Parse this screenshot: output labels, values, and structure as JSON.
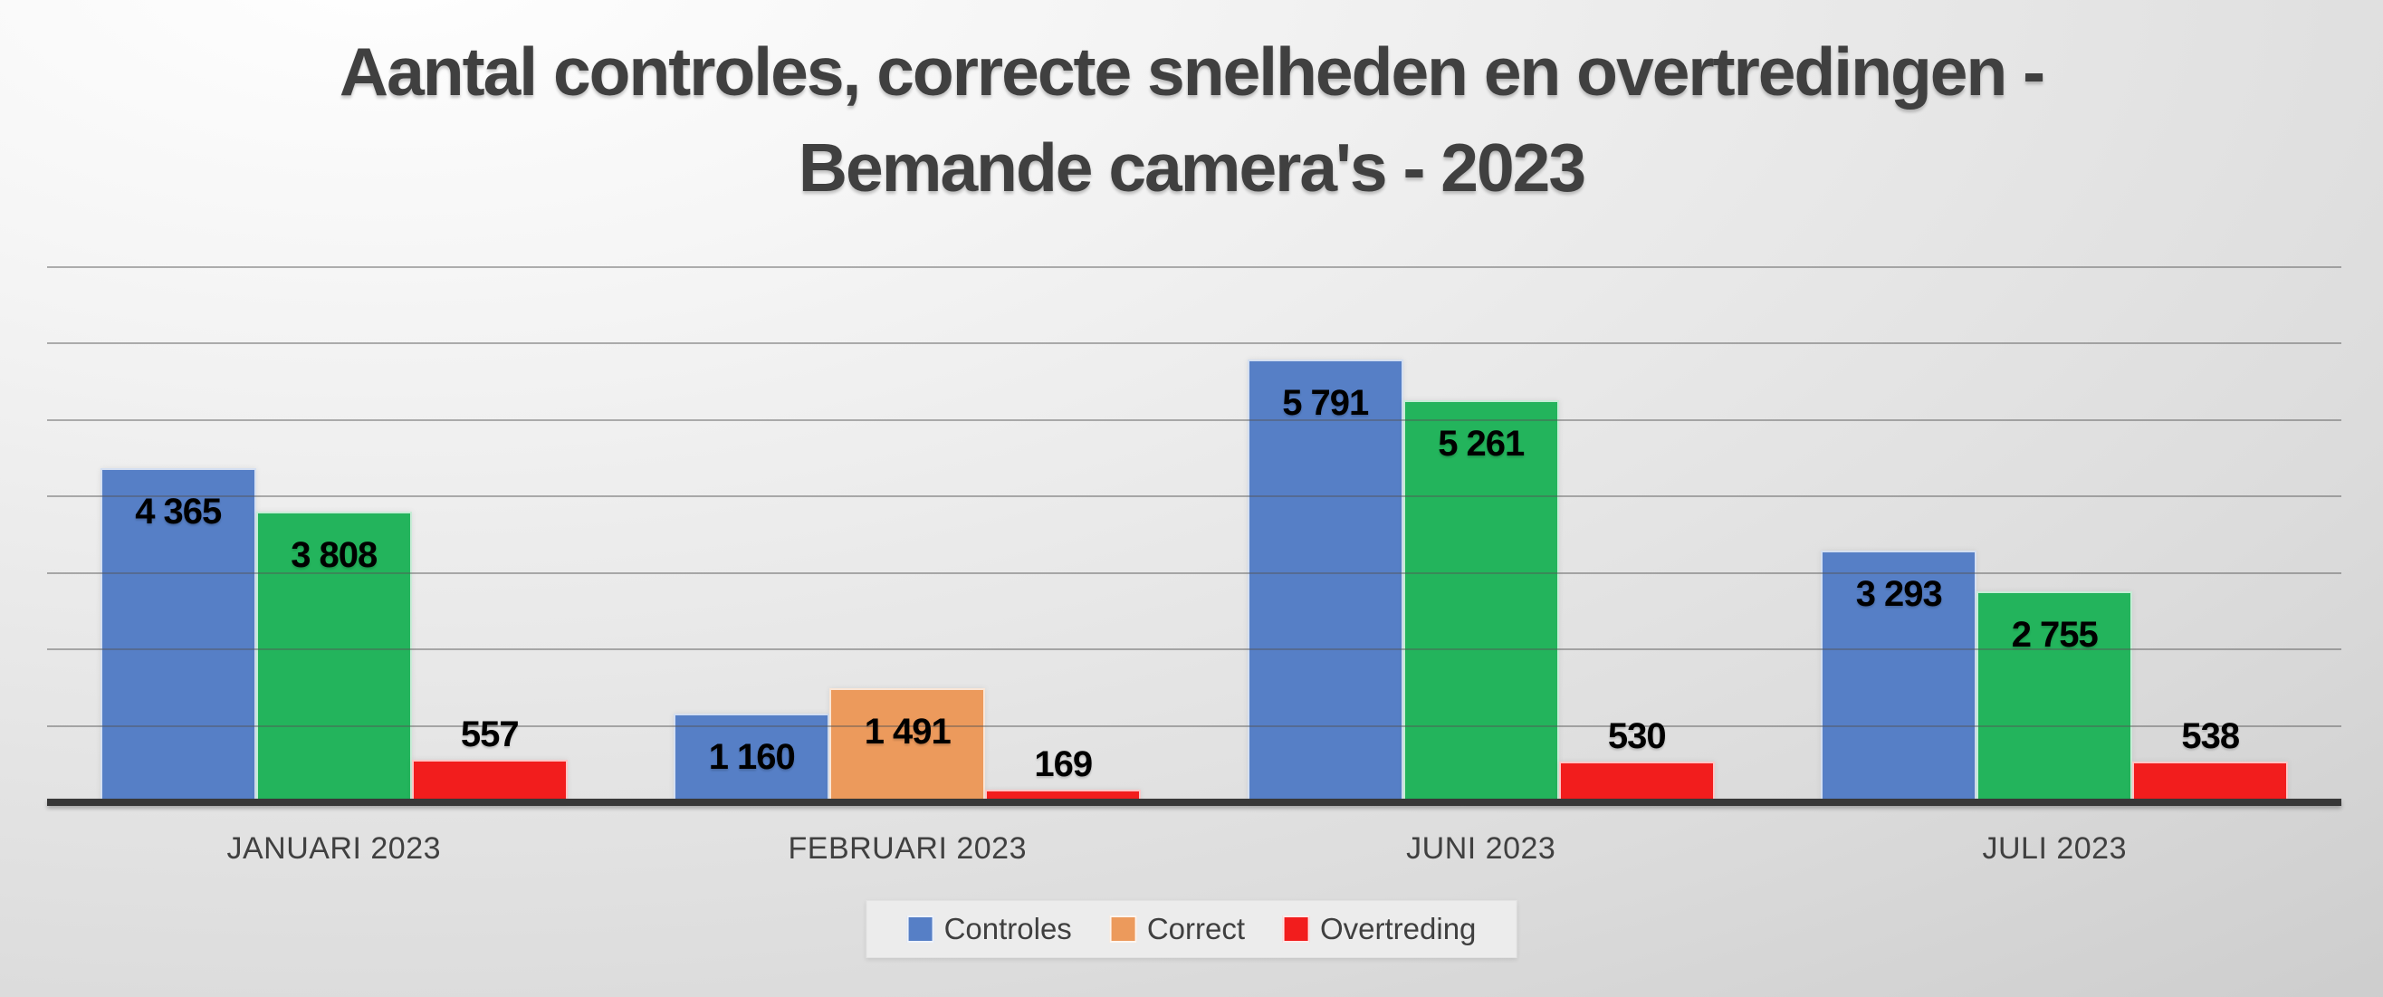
{
  "title": {
    "line1": "Aantal controles, correcte snelheden en overtredingen -",
    "line2": "Bemande camera's - 2023"
  },
  "chart_data": {
    "type": "bar",
    "title": "Aantal controles, correcte snelheden en overtredingen - Bemande camera's - 2023",
    "categories": [
      "JANUARI 2023",
      "FEBRUARI 2023",
      "JUNI 2023",
      "JULI 2023"
    ],
    "series": [
      {
        "name": "Controles",
        "color": "#567FC6",
        "values": [
          4365,
          1160,
          5791,
          3293
        ],
        "labels": [
          "4 365",
          "1 160",
          "5 791",
          "3 293"
        ]
      },
      {
        "name": "Correct",
        "color": "#EC9A5C",
        "point_colors": [
          "#23B45C",
          "#EC9A5C",
          "#23B45C",
          "#23B45C"
        ],
        "values": [
          3808,
          1491,
          5261,
          2755
        ],
        "labels": [
          "3 808",
          "1 491",
          "5 261",
          "2 755"
        ]
      },
      {
        "name": "Overtreding",
        "color": "#F21D1D",
        "values": [
          557,
          169,
          530,
          538
        ],
        "labels": [
          "557",
          "169",
          "530",
          "538"
        ]
      }
    ],
    "xlabel": "",
    "ylabel": "",
    "ylim": [
      0,
      7000
    ],
    "gridline_step": 1000,
    "grid": true,
    "legend_position": "bottom",
    "data_label_style": "inside-end-bold-black",
    "axis_line_color": "#383838",
    "text_color": "#404040"
  }
}
